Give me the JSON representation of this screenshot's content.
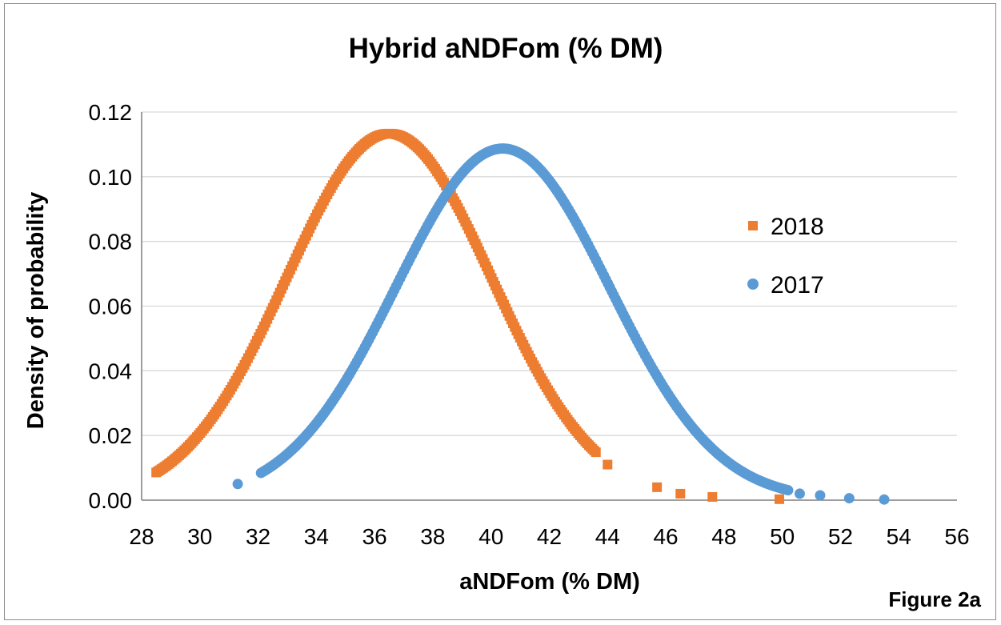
{
  "figure_label": "Figure 2a",
  "colors": {
    "s2018": "#ED7D31",
    "s2017": "#5B9BD5",
    "grid": "#d9d9d9",
    "axis": "#7f7f7f"
  },
  "chart_data": {
    "type": "scatter",
    "title": "Hybrid aNDFom (% DM)",
    "xlabel": "aNDFom (% DM)",
    "ylabel": "Density of probability",
    "xlim": [
      28,
      56
    ],
    "ylim": [
      0,
      0.12
    ],
    "x_ticks": [
      28,
      30,
      32,
      34,
      36,
      38,
      40,
      42,
      44,
      46,
      48,
      50,
      52,
      54,
      56
    ],
    "x_tick_labels": [
      "28",
      "30",
      "32",
      "34",
      "36",
      "38",
      "40",
      "42",
      "44",
      "46",
      "48",
      "50",
      "52",
      "54",
      "56"
    ],
    "y_ticks": [
      0,
      0.02,
      0.04,
      0.06,
      0.08,
      0.1,
      0.12
    ],
    "y_tick_labels": [
      "0.00",
      "0.02",
      "0.04",
      "0.06",
      "0.08",
      "0.10",
      "0.12"
    ],
    "grid": true,
    "legend": {
      "position": "right",
      "entries": [
        "2018",
        "2017"
      ]
    },
    "series": [
      {
        "name": "2018",
        "marker": "square",
        "color": "#ED7D31",
        "distribution": {
          "mean": 36.5,
          "sd": 3.52,
          "min": 28.5,
          "max": 49.9,
          "points": 250
        },
        "isolated_points": [
          {
            "x": 44.0,
            "y": 0.011
          },
          {
            "x": 45.7,
            "y": 0.004
          },
          {
            "x": 46.5,
            "y": 0.002
          },
          {
            "x": 47.6,
            "y": 0.001
          },
          {
            "x": 49.9,
            "y": 0.0003
          }
        ]
      },
      {
        "name": "2017",
        "marker": "circle",
        "color": "#5B9BD5",
        "distribution": {
          "mean": 40.4,
          "sd": 3.67,
          "min": 31.3,
          "max": 53.5,
          "points": 270
        },
        "isolated_points": [
          {
            "x": 31.3,
            "y": 0.005
          },
          {
            "x": 50.6,
            "y": 0.002
          },
          {
            "x": 51.3,
            "y": 0.0015
          },
          {
            "x": 52.3,
            "y": 0.0006
          },
          {
            "x": 53.5,
            "y": 0.0002
          }
        ]
      }
    ]
  }
}
